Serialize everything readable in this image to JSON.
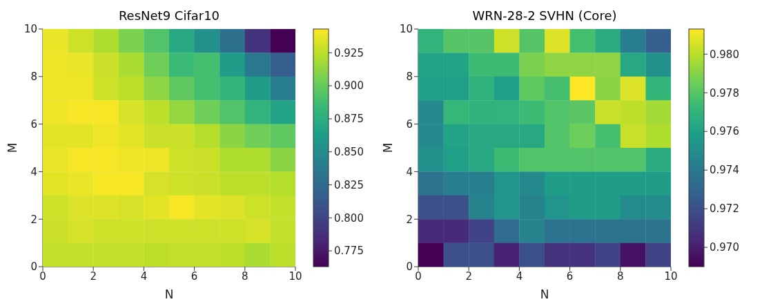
{
  "chart_data": [
    {
      "type": "heatmap",
      "title": "ResNet9 Cifar10",
      "xlabel": "N",
      "ylabel": "M",
      "xlim": [
        0,
        10
      ],
      "ylim": [
        0,
        10
      ],
      "xticks": [
        0,
        2,
        4,
        6,
        8,
        10
      ],
      "yticks": [
        0,
        2,
        4,
        6,
        8,
        10
      ],
      "clim": [
        0.763,
        0.943
      ],
      "cticks": [
        0.775,
        {
          "value": 0.8,
          "label": "0.800"
        },
        0.825,
        {
          "value": 0.85,
          "label": "0.850"
        },
        0.875,
        {
          "value": 0.9,
          "label": "0.900"
        },
        0.925
      ],
      "cells": [
        [
          0.938,
          0.93,
          0.921,
          0.907,
          0.893,
          0.871,
          0.853,
          0.83,
          0.79,
          0.763
        ],
        [
          0.939,
          0.938,
          0.929,
          0.92,
          0.903,
          0.885,
          0.889,
          0.862,
          0.835,
          0.817
        ],
        [
          0.939,
          0.939,
          0.93,
          0.925,
          0.912,
          0.898,
          0.889,
          0.882,
          0.862,
          0.84
        ],
        [
          0.939,
          0.941,
          0.941,
          0.932,
          0.925,
          0.914,
          0.903,
          0.893,
          0.88,
          0.867
        ],
        [
          0.936,
          0.936,
          0.939,
          0.936,
          0.929,
          0.929,
          0.923,
          0.911,
          0.903,
          0.898
        ],
        [
          0.938,
          0.941,
          0.941,
          0.939,
          0.939,
          0.93,
          0.929,
          0.921,
          0.921,
          0.911
        ],
        [
          0.936,
          0.938,
          0.941,
          0.941,
          0.932,
          0.93,
          0.929,
          0.925,
          0.925,
          0.923
        ],
        [
          0.93,
          0.934,
          0.934,
          0.932,
          0.936,
          0.941,
          0.936,
          0.934,
          0.93,
          0.927
        ],
        [
          0.929,
          0.932,
          0.93,
          0.93,
          0.93,
          0.93,
          0.93,
          0.93,
          0.932,
          0.927
        ],
        [
          0.927,
          0.927,
          0.927,
          0.927,
          0.925,
          0.927,
          0.927,
          0.925,
          0.92,
          0.925
        ]
      ]
    },
    {
      "type": "heatmap",
      "title": "WRN-28-2 SVHN (Core)",
      "xlabel": "N",
      "ylabel": "M",
      "xlim": [
        0,
        10
      ],
      "ylim": [
        0,
        10
      ],
      "xticks": [
        0,
        2,
        4,
        6,
        8,
        10
      ],
      "yticks": [
        0,
        2,
        4,
        6,
        8,
        10
      ],
      "clim": [
        0.969,
        0.9813
      ],
      "cticks": [
        {
          "value": 0.97,
          "label": "0.970"
        },
        0.972,
        0.974,
        0.976,
        0.978,
        {
          "value": 0.98,
          "label": "0.980"
        }
      ],
      "cells": [
        [
          0.977,
          0.978,
          0.978,
          0.9804,
          0.978,
          0.9807,
          0.9776,
          0.9766,
          0.9742,
          0.9727
        ],
        [
          0.9761,
          0.9761,
          0.9774,
          0.9774,
          0.9788,
          0.9792,
          0.9792,
          0.9792,
          0.9764,
          0.9752
        ],
        [
          0.9759,
          0.9759,
          0.9769,
          0.9759,
          0.9782,
          0.9776,
          0.9813,
          0.9791,
          0.9807,
          0.9771
        ],
        [
          0.9748,
          0.9772,
          0.9769,
          0.977,
          0.9774,
          0.9779,
          0.9781,
          0.9803,
          0.9801,
          0.9796
        ],
        [
          0.9748,
          0.9761,
          0.9764,
          0.9764,
          0.9764,
          0.9779,
          0.9785,
          0.9776,
          0.9803,
          0.9798
        ],
        [
          0.9752,
          0.9759,
          0.9764,
          0.9774,
          0.9779,
          0.9779,
          0.9779,
          0.9779,
          0.9779,
          0.9766
        ],
        [
          0.9736,
          0.9742,
          0.9743,
          0.9754,
          0.9748,
          0.9758,
          0.9758,
          0.9758,
          0.9758,
          0.9758
        ],
        [
          0.9721,
          0.9721,
          0.9745,
          0.9754,
          0.9745,
          0.9754,
          0.9758,
          0.9758,
          0.9749,
          0.9749
        ],
        [
          0.9705,
          0.9705,
          0.9715,
          0.9733,
          0.9745,
          0.9736,
          0.9736,
          0.9737,
          0.9737,
          0.9737
        ],
        [
          0.969,
          0.972,
          0.9721,
          0.9702,
          0.972,
          0.9708,
          0.9708,
          0.9715,
          0.9696,
          0.9715
        ]
      ]
    }
  ]
}
